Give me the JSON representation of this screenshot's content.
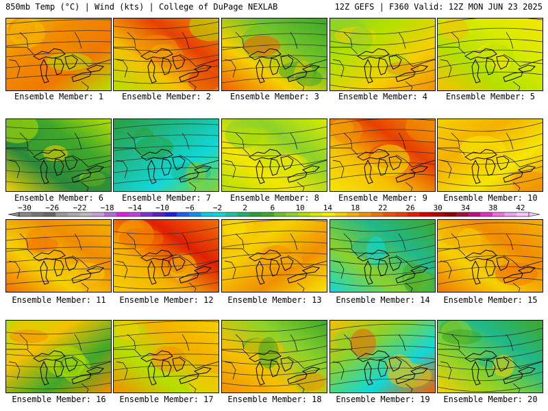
{
  "header": {
    "left_title": "850mb Temp (°C) | Wind (kts) | College of DuPage NEXLAB",
    "right_title": "12Z GEFS | F360 Valid: 12Z MON JUN 23 2025"
  },
  "panels": [
    {
      "label": "Ensemble Member: 1",
      "palette": [
        "#f5c000",
        "#f08c00",
        "#f07800",
        "#b4e000"
      ]
    },
    {
      "label": "Ensemble Member: 2",
      "palette": [
        "#f09000",
        "#e64000",
        "#f5c000",
        "#b4e000"
      ]
    },
    {
      "label": "Ensemble Member: 3",
      "palette": [
        "#3ea82a",
        "#6cc22a",
        "#f5d000",
        "#f06000"
      ]
    },
    {
      "label": "Ensemble Member: 4",
      "palette": [
        "#8cd22a",
        "#b4e000",
        "#f5d000",
        "#f09000"
      ]
    },
    {
      "label": "Ensemble Member: 5",
      "palette": [
        "#f5e600",
        "#d8ea00",
        "#b4e000",
        "#f5c000"
      ]
    },
    {
      "label": "Ensemble Member: 6",
      "palette": [
        "#b4e000",
        "#3ea82a",
        "#2a8a3a",
        "#f5d000"
      ]
    },
    {
      "label": "Ensemble Member: 7",
      "palette": [
        "#2aa03a",
        "#20b88a",
        "#10d8d8",
        "#8cd22a"
      ]
    },
    {
      "label": "Ensemble Member: 8",
      "palette": [
        "#d8ea00",
        "#8cd22a",
        "#f5e600",
        "#b4e000"
      ]
    },
    {
      "label": "Ensemble Member: 9",
      "palette": [
        "#f09000",
        "#e64000",
        "#f5c000",
        "#f5e600"
      ]
    },
    {
      "label": "Ensemble Member: 10",
      "palette": [
        "#f5d000",
        "#f5b000",
        "#f5e600",
        "#f09000"
      ]
    },
    {
      "label": "Ensemble Member: 11",
      "palette": [
        "#f5b000",
        "#f08c00",
        "#f5d000",
        "#f07000"
      ]
    },
    {
      "label": "Ensemble Member: 12",
      "palette": [
        "#f07000",
        "#e02000",
        "#f5b000",
        "#f5d000"
      ]
    },
    {
      "label": "Ensemble Member: 13",
      "palette": [
        "#f5b000",
        "#f5d000",
        "#f09000",
        "#f5e600"
      ]
    },
    {
      "label": "Ensemble Member: 14",
      "palette": [
        "#3ea82a",
        "#20b88a",
        "#8cd22a",
        "#10d8d8"
      ]
    },
    {
      "label": "Ensemble Member: 15",
      "palette": [
        "#f5b000",
        "#f08c00",
        "#f5d000",
        "#f07800"
      ]
    },
    {
      "label": "Ensemble Member: 16",
      "palette": [
        "#b4e000",
        "#f5c000",
        "#3ea82a",
        "#f09000"
      ]
    },
    {
      "label": "Ensemble Member: 17",
      "palette": [
        "#f5d000",
        "#f5b000",
        "#b4e000",
        "#f09000"
      ]
    },
    {
      "label": "Ensemble Member: 18",
      "palette": [
        "#3ea82a",
        "#8cd22a",
        "#f5c000",
        "#f09000"
      ]
    },
    {
      "label": "Ensemble Member: 19",
      "palette": [
        "#f5c000",
        "#8cd22a",
        "#10d8d8",
        "#f06000"
      ]
    },
    {
      "label": "Ensemble Member: 20",
      "palette": [
        "#3ea82a",
        "#20b88a",
        "#8cd22a",
        "#f5d000"
      ]
    }
  ],
  "colorbar": {
    "labels": [
      "−30",
      "−26",
      "−22",
      "−18",
      "−14",
      "−10",
      "−6",
      "−2",
      "2",
      "6",
      "10",
      "14",
      "18",
      "22",
      "26",
      "30",
      "34",
      "38",
      "42"
    ],
    "colors": [
      "#888888",
      "#777777",
      "#666666",
      "#999999",
      "#aaaaaa",
      "#bbbbbb",
      "#c8a0e0",
      "#b070d8",
      "#e020e0",
      "#c040e0",
      "#8030d0",
      "#6020c0",
      "#2020e0",
      "#2060f0",
      "#1090f0",
      "#10c8e8",
      "#10d8d8",
      "#20c0a0",
      "#20b070",
      "#2aa03a",
      "#3ea82a",
      "#6cc22a",
      "#8cd22a",
      "#b4e000",
      "#d8ea00",
      "#f5f000",
      "#f5d000",
      "#f5b000",
      "#f09000",
      "#f07000",
      "#f05000",
      "#e64000",
      "#e02000",
      "#d00000",
      "#b00000",
      "#900000",
      "#a01040",
      "#c01080",
      "#e030c0",
      "#f070e0",
      "#f0a0f0",
      "#f8c8f8"
    ]
  }
}
